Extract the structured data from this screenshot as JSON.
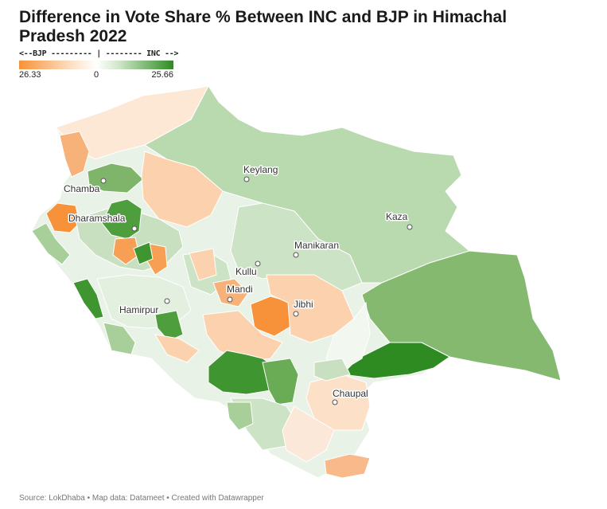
{
  "title": "Difference in Vote Share % Between INC and BJP in Himachal Pradesh 2022",
  "legend": {
    "caption": "<--BJP --------- | -------- INC -->",
    "min_label": "26.33",
    "mid_label": "0",
    "max_label": "25.66",
    "colors": {
      "bjp_max": "#f7923a",
      "neutral": "#ffffff",
      "inc_max": "#2e8b22"
    }
  },
  "cities": [
    {
      "name": "Chamba"
    },
    {
      "name": "Keylang"
    },
    {
      "name": "Dharamshala"
    },
    {
      "name": "Kaza"
    },
    {
      "name": "Manikaran"
    },
    {
      "name": "Kullu"
    },
    {
      "name": "Mandi"
    },
    {
      "name": "Jibhi"
    },
    {
      "name": "Hamirpur"
    },
    {
      "name": "Chaupal"
    }
  ],
  "footer": {
    "source": "Source: LokDhaba • Map data: Datameet • Created with Datawrapper"
  }
}
